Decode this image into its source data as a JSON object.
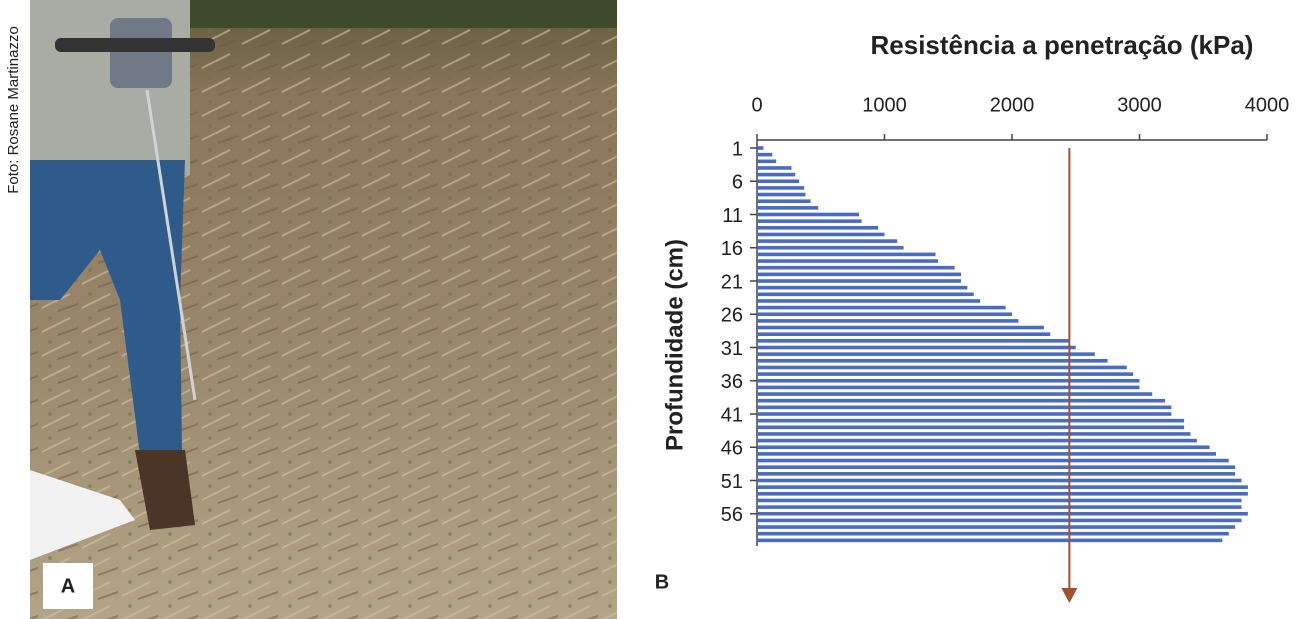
{
  "photo": {
    "credit": "Foto: Rosane Martinazzo",
    "label": "A"
  },
  "chart_data": {
    "type": "hbar",
    "panel_label": "B",
    "title": "Resistência a penetração (kPa)",
    "y_label": "Profundidade (cm)",
    "categories": [
      1,
      null,
      null,
      null,
      null,
      6,
      null,
      null,
      null,
      null,
      11,
      null,
      null,
      null,
      null,
      16,
      null,
      null,
      null,
      null,
      21,
      null,
      null,
      null,
      null,
      26,
      null,
      null,
      null,
      null,
      31,
      null,
      null,
      null,
      null,
      36,
      null,
      null,
      null,
      null,
      41,
      null,
      null,
      null,
      null,
      46,
      null,
      null,
      null,
      null,
      51,
      null,
      null,
      null,
      null,
      56,
      null,
      null,
      null,
      null
    ],
    "values": [
      50,
      120,
      150,
      270,
      300,
      330,
      370,
      380,
      420,
      480,
      800,
      820,
      950,
      1000,
      1100,
      1150,
      1400,
      1420,
      1550,
      1600,
      1600,
      1650,
      1700,
      1750,
      1950,
      2000,
      2050,
      2250,
      2300,
      2450,
      2500,
      2650,
      2750,
      2900,
      2950,
      3000,
      3000,
      3100,
      3200,
      3250,
      3250,
      3350,
      3350,
      3400,
      3450,
      3550,
      3600,
      3700,
      3750,
      3750,
      3800,
      3850,
      3850,
      3800,
      3800,
      3850,
      3800,
      3750,
      3700,
      3650
    ],
    "color": "#4a6cc0",
    "xlim": [
      0,
      4000
    ],
    "xticks": [
      0,
      1000,
      2000,
      3000,
      4000
    ],
    "reference_line": 2450,
    "reference_color": "#a0522d"
  }
}
